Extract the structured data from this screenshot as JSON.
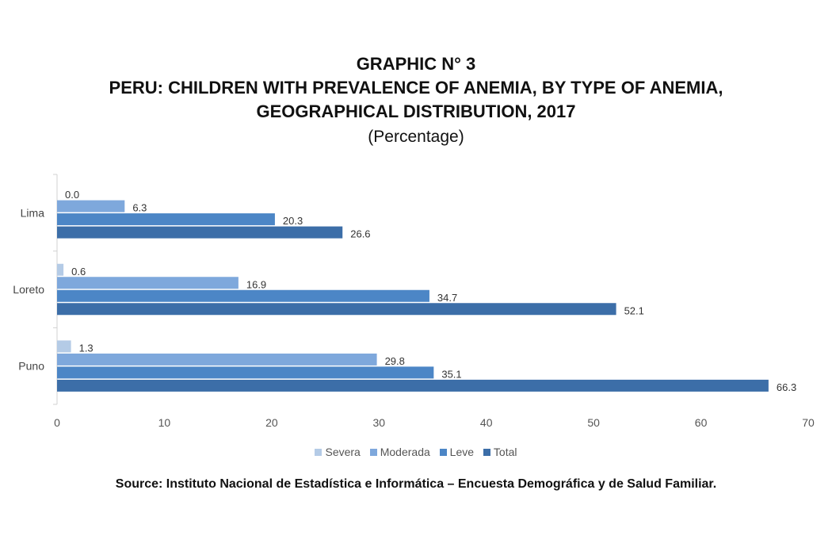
{
  "chart_data": {
    "type": "bar",
    "orientation": "horizontal",
    "title_lines": [
      "GRAPHIC N° 3",
      "PERU: CHILDREN WITH PREVALENCE OF ANEMIA, BY TYPE OF ANEMIA,",
      "GEOGRAPHICAL DISTRIBUTION, 2017"
    ],
    "subtitle": "(Percentage)",
    "categories": [
      "Lima",
      "Loreto",
      "Puno"
    ],
    "series": [
      {
        "name": "Severa",
        "color": "#b4cbe6",
        "values": [
          0.0,
          0.6,
          1.3
        ],
        "labels": [
          "0.0",
          "0.6",
          "1.3"
        ]
      },
      {
        "name": "Moderada",
        "color": "#7ea8dc",
        "values": [
          6.3,
          16.9,
          29.8
        ],
        "labels": [
          "6.3",
          "16.9",
          "29.8"
        ]
      },
      {
        "name": "Leve",
        "color": "#4c86c6",
        "values": [
          20.3,
          34.7,
          35.1
        ],
        "labels": [
          "20.3",
          "34.7",
          "35.1"
        ]
      },
      {
        "name": "Total",
        "color": "#3c6ea8",
        "values": [
          26.6,
          52.1,
          66.3
        ],
        "labels": [
          "26.6",
          "52.1",
          "66.3"
        ]
      }
    ],
    "xlim": [
      0,
      70
    ],
    "xticks": [
      "0",
      "10",
      "20",
      "30",
      "40",
      "50",
      "60",
      "70"
    ],
    "grid": false,
    "legend_position": "bottom"
  },
  "source": "Source: Instituto Nacional de Estadística e Informática – Encuesta Demográfica y de Salud Familiar."
}
